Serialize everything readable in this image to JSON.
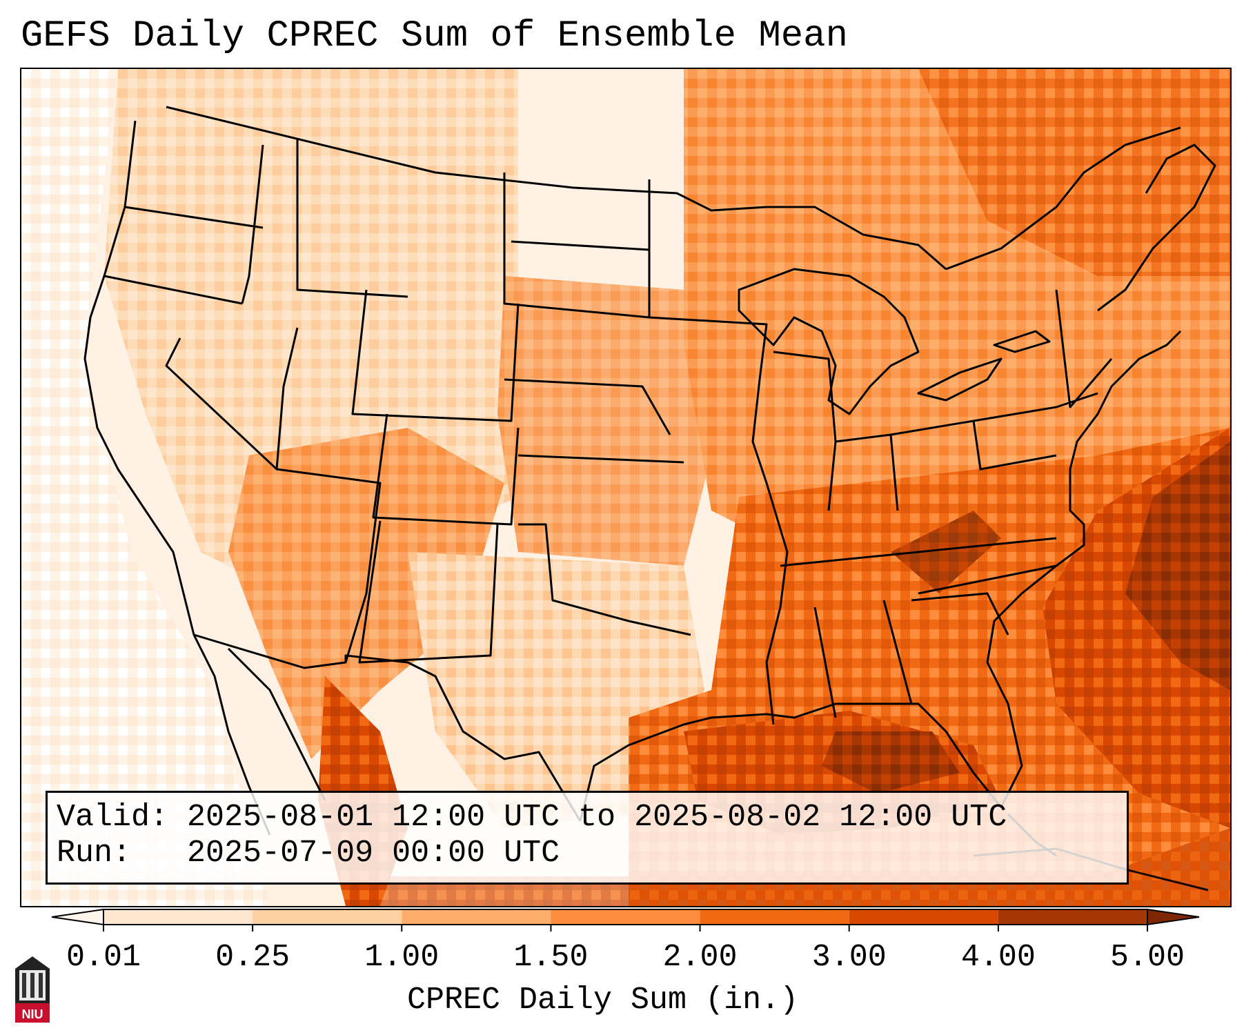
{
  "title": "GEFS Daily CPREC Sum of Ensemble Mean",
  "info": {
    "valid_label": "Valid:",
    "valid_value": "2025-08-01 12:00 UTC to 2025-08-02 12:00 UTC",
    "run_label": "Run:",
    "run_value": "2025-07-09 00:00 UTC"
  },
  "colorbar": {
    "label": "CPREC Daily Sum (in.)",
    "ticks": [
      "0.01",
      "0.25",
      "1.00",
      "1.50",
      "2.00",
      "3.00",
      "4.00",
      "5.00"
    ],
    "colors": [
      "#fff5eb",
      "#fee6ce",
      "#fdd0a2",
      "#fdae6b",
      "#fd8d3c",
      "#f16913",
      "#d94801",
      "#a63603",
      "#7f2704"
    ]
  },
  "logo": {
    "text": "NIU",
    "icon": "niu-building-icon"
  },
  "map": {
    "region": "Contiguous United States",
    "boundaries": "state-borders"
  }
}
